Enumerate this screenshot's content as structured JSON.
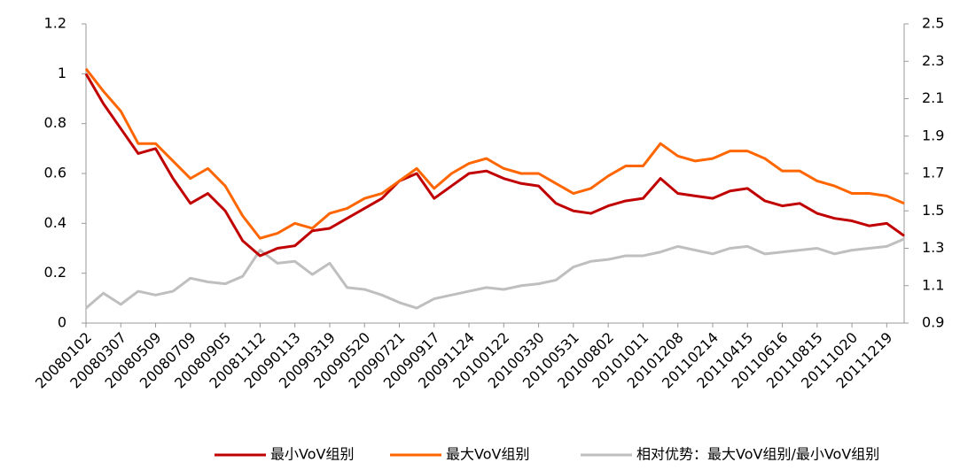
{
  "chart_data": {
    "type": "line",
    "categories": [
      "20080102",
      null,
      "20080307",
      null,
      "20080509",
      null,
      "20080709",
      null,
      "20080905",
      null,
      "20081112",
      null,
      "20090113",
      null,
      "20090319",
      null,
      "20090520",
      null,
      "20090721",
      null,
      "20090917",
      null,
      "20091124",
      null,
      "20100122",
      null,
      "20100330",
      null,
      "20100531",
      null,
      "20100802",
      null,
      "20101011",
      null,
      "20101208",
      null,
      "20110214",
      null,
      "20110415",
      null,
      "20110616",
      null,
      "20110815",
      null,
      "20111020",
      null,
      "20111219",
      null
    ],
    "series": [
      {
        "name": "最小VoV组别",
        "color": "#c00000",
        "values": [
          1.0,
          0.88,
          0.78,
          0.68,
          0.7,
          0.58,
          0.48,
          0.52,
          0.45,
          0.33,
          0.27,
          0.3,
          0.31,
          0.37,
          0.38,
          0.42,
          0.46,
          0.5,
          0.57,
          0.6,
          0.5,
          0.55,
          0.6,
          0.61,
          0.58,
          0.56,
          0.55,
          0.48,
          0.45,
          0.44,
          0.47,
          0.49,
          0.5,
          0.58,
          0.52,
          0.51,
          0.5,
          0.53,
          0.54,
          0.49,
          0.47,
          0.48,
          0.44,
          0.42,
          0.41,
          0.39,
          0.4,
          0.35
        ]
      },
      {
        "name": "最大VoV组别",
        "color": "#ff6600",
        "values": [
          1.02,
          0.93,
          0.85,
          0.72,
          0.72,
          0.65,
          0.58,
          0.62,
          0.55,
          0.43,
          0.34,
          0.36,
          0.4,
          0.38,
          0.44,
          0.46,
          0.5,
          0.52,
          0.57,
          0.62,
          0.54,
          0.6,
          0.64,
          0.66,
          0.62,
          0.6,
          0.6,
          0.56,
          0.52,
          0.54,
          0.59,
          0.63,
          0.63,
          0.72,
          0.67,
          0.65,
          0.66,
          0.69,
          0.69,
          0.66,
          0.61,
          0.61,
          0.57,
          0.55,
          0.52,
          0.52,
          0.51,
          0.48
        ]
      },
      {
        "name": "相对优势：最大VoV组别/最小VoV组别",
        "color": "#bfbfbf",
        "axis": "y2",
        "values": [
          0.98,
          1.06,
          1.0,
          1.07,
          1.05,
          1.07,
          1.14,
          1.12,
          1.11,
          1.15,
          1.29,
          1.22,
          1.23,
          1.16,
          1.22,
          1.09,
          1.08,
          1.05,
          1.01,
          0.98,
          1.03,
          1.05,
          1.07,
          1.09,
          1.08,
          1.1,
          1.11,
          1.13,
          1.2,
          1.23,
          1.24,
          1.26,
          1.26,
          1.28,
          1.31,
          1.29,
          1.27,
          1.3,
          1.31,
          1.27,
          1.28,
          1.29,
          1.3,
          1.27,
          1.29,
          1.3,
          1.31,
          1.35
        ]
      }
    ],
    "ylim": [
      0,
      1.2
    ],
    "yticks": [
      0,
      0.2,
      0.4,
      0.6,
      0.8,
      1,
      1.2
    ],
    "y2lim": [
      0.9,
      2.5
    ],
    "y2ticks": [
      0.9,
      1.1,
      1.3,
      1.5,
      1.7,
      1.9,
      2.1,
      2.3,
      2.5
    ],
    "legend": "bottom-right"
  }
}
